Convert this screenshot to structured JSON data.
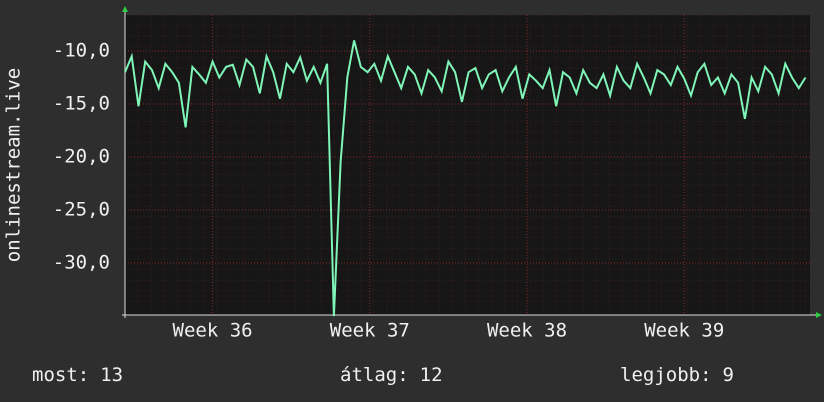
{
  "chart_data": {
    "type": "line",
    "y_label": "onlinestream.live",
    "x": [
      -3.9,
      -3.6,
      -3.3,
      -3.0,
      -2.7,
      -2.4,
      -2.1,
      -1.8,
      -1.5,
      -1.2,
      -0.9,
      -0.6,
      -0.3,
      0,
      0.3,
      0.6,
      0.9,
      1.2,
      1.5,
      1.8,
      2.1,
      2.4,
      2.7,
      3.0,
      3.3,
      3.6,
      3.9,
      4.2,
      4.5,
      4.8,
      5.1,
      5.4,
      5.7,
      6.0,
      6.3,
      6.6,
      6.9,
      7.2,
      7.5,
      7.8,
      8.1,
      8.4,
      8.7,
      9.0,
      9.3,
      9.6,
      9.9,
      10.2,
      10.5,
      10.8,
      11.1,
      11.4,
      11.7,
      12.0,
      12.3,
      12.6,
      12.9,
      13.2,
      13.5,
      13.8,
      14.1,
      14.4,
      14.7,
      15.0,
      15.3,
      15.6,
      15.9,
      16.2,
      16.5,
      16.8,
      17.1,
      17.4,
      17.7,
      18.0,
      18.3,
      18.6,
      18.9,
      19.2,
      19.5,
      19.8,
      20.1,
      20.4,
      20.7,
      21.0,
      21.3,
      21.6,
      21.9,
      22.2,
      22.5,
      22.8,
      23.1,
      23.4,
      23.7,
      24.0,
      24.3,
      24.6,
      24.9,
      25.2,
      25.5,
      25.8,
      26.1,
      26.4
    ],
    "series": [
      {
        "color": "#7ff5b8",
        "values": [
          -12.0,
          -10.5,
          -15.2,
          -11.0,
          -11.8,
          -13.5,
          -11.2,
          -12.0,
          -13.0,
          -17.2,
          -11.5,
          -12.2,
          -13.0,
          -11.0,
          -12.5,
          -11.5,
          -11.3,
          -13.2,
          -10.8,
          -11.5,
          -14.0,
          -10.5,
          -12.0,
          -14.5,
          -11.2,
          -12.0,
          -10.6,
          -12.8,
          -11.5,
          -13.0,
          -11.2,
          -35.0,
          -20.5,
          -12.5,
          -9.0,
          -11.5,
          -12.0,
          -11.2,
          -12.8,
          -10.5,
          -12.0,
          -13.5,
          -11.5,
          -12.2,
          -14.0,
          -11.8,
          -12.5,
          -13.8,
          -11.0,
          -12.0,
          -14.8,
          -12.0,
          -11.6,
          -13.5,
          -12.2,
          -11.8,
          -13.8,
          -12.5,
          -11.5,
          -14.5,
          -12.2,
          -12.8,
          -13.5,
          -11.8,
          -15.2,
          -12.0,
          -12.5,
          -14.0,
          -11.8,
          -13.0,
          -13.5,
          -12.2,
          -14.2,
          -11.5,
          -12.8,
          -13.5,
          -11.2,
          -12.5,
          -14.0,
          -11.8,
          -12.2,
          -13.2,
          -11.5,
          -12.6,
          -14.2,
          -12.0,
          -11.2,
          -13.2,
          -12.5,
          -14.0,
          -12.2,
          -13.0,
          -16.4,
          -12.5,
          -13.8,
          -11.5,
          -12.2,
          -14.0,
          -11.2,
          -12.5,
          -13.5,
          -12.5
        ]
      }
    ],
    "xlim": [
      -3.9,
      26.6
    ],
    "xticks": [
      {
        "value": 0,
        "label": "Week 36"
      },
      {
        "value": 7,
        "label": "Week 37"
      },
      {
        "value": 14,
        "label": "Week 38"
      },
      {
        "value": 21,
        "label": "Week 39"
      }
    ],
    "ylim": [
      -34.9,
      -6.6
    ],
    "yticks": [
      {
        "value": -10,
        "label": "-10,0"
      },
      {
        "value": -15,
        "label": "-15,0"
      },
      {
        "value": -20,
        "label": "-20,0"
      },
      {
        "value": -25,
        "label": "-25,0"
      },
      {
        "value": -30,
        "label": "-30,0"
      }
    ],
    "grid": true,
    "footer": [
      {
        "label": "most:",
        "value": 13
      },
      {
        "label": "átlag:",
        "value": 12
      },
      {
        "label": "legjobb:",
        "value": 9
      }
    ]
  }
}
